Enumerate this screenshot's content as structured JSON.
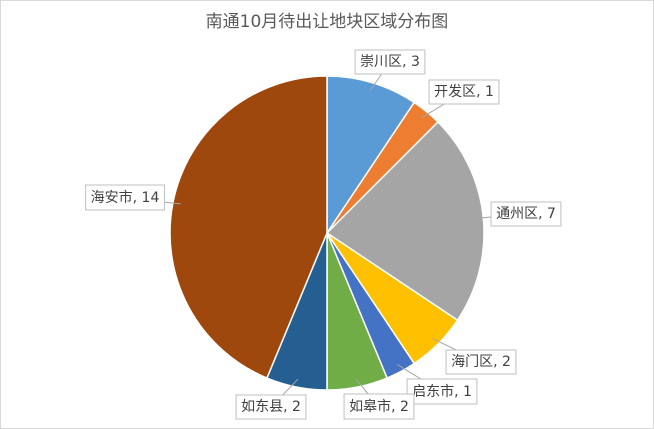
{
  "chart_data": {
    "type": "pie",
    "title": "南通10月待出让地块区域分布图",
    "categories": [
      "崇川区",
      "开发区",
      "通州区",
      "海门区",
      "启东市",
      "如皋市",
      "如东县",
      "海安市"
    ],
    "values": [
      3,
      1,
      7,
      2,
      1,
      2,
      2,
      14
    ],
    "colors": [
      "#5b9bd5",
      "#ed7d31",
      "#a5a5a5",
      "#ffc000",
      "#4472c4",
      "#70ad47",
      "#255e91",
      "#9e480e"
    ],
    "label_separator": ", "
  }
}
